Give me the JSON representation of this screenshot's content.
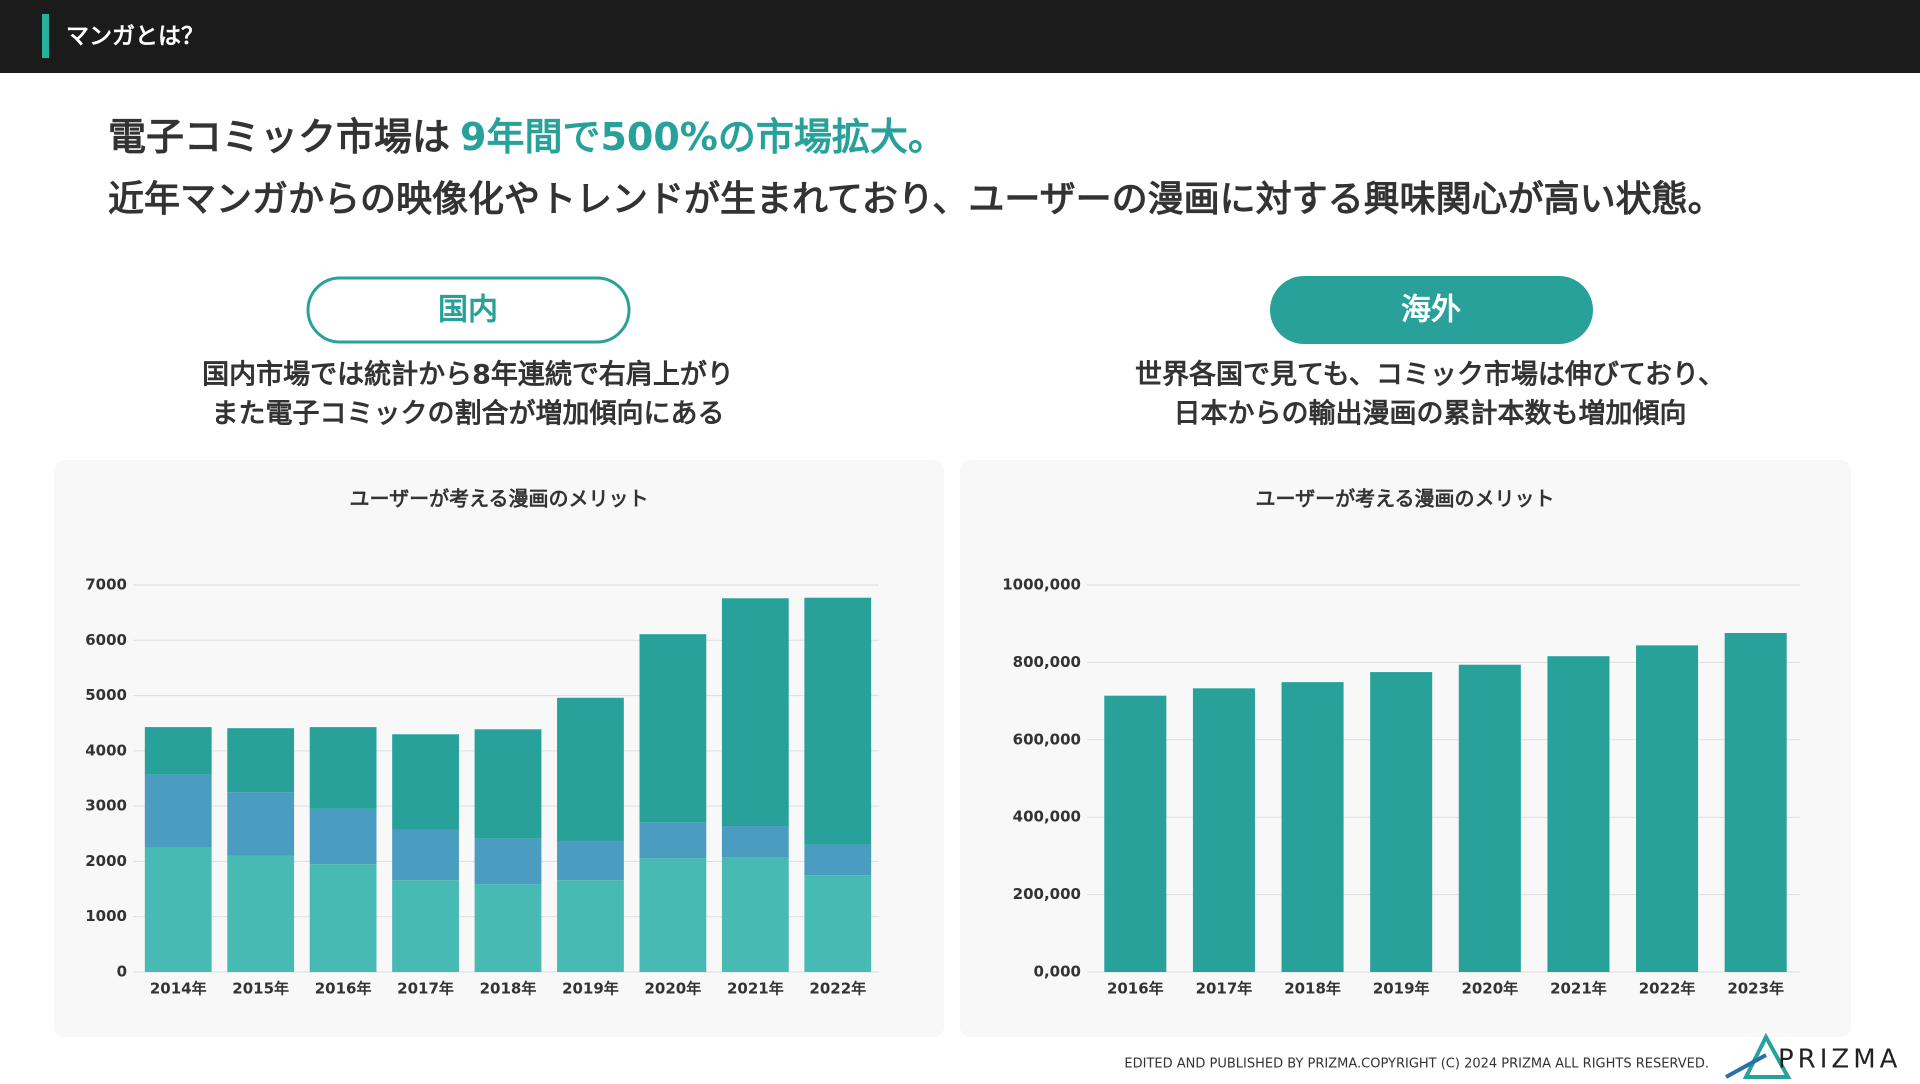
{
  "header": {
    "title": "マンガとは？"
  },
  "headline": {
    "line1_plain": "電子コミック市場は",
    "line1_highlight": "9年間で500%の市場拡大。",
    "line2": "近年マンガからの映像化やトレンドが生まれており、ユーザーの漫画に対する興味関心が高い状態。"
  },
  "sections": [
    {
      "label": "国内",
      "text": [
        "国内市場では統計から8年連続で右肩上がり",
        "また電子コミックの割合が増加傾向にある"
      ]
    },
    {
      "label": "海外",
      "text": [
        "世界各国で見ても、コミック市場は伸びており、",
        "日本からの輸出漫画の累計本数も増加傾向"
      ]
    }
  ],
  "chart_data": [
    {
      "type": "bar",
      "stacked": true,
      "title": "ユーザーが考える漫画のメリット",
      "categories": [
        "2014年",
        "2015年",
        "2016年",
        "2017年",
        "2018年",
        "2019年",
        "2020年",
        "2021年",
        "2022年"
      ],
      "series": [
        {
          "color": "#48bab4",
          "values": [
            2250,
            2100,
            1950,
            1660,
            1590,
            1660,
            2060,
            2080,
            1750
          ]
        },
        {
          "color": "#4a9cc0",
          "values": [
            1320,
            1150,
            1000,
            910,
            820,
            710,
            640,
            560,
            550
          ]
        },
        {
          "color": "#27a19a",
          "values": [
            860,
            1160,
            1480,
            1730,
            1980,
            2590,
            3410,
            4120,
            4470
          ]
        }
      ],
      "ylim": [
        0,
        7000
      ],
      "yticks": [
        0,
        1000,
        2000,
        3000,
        4000,
        5000,
        6000,
        7000
      ],
      "grid": true
    },
    {
      "type": "bar",
      "title": "ユーザーが考える漫画のメリット",
      "categories": [
        "2016年",
        "2017年",
        "2018年",
        "2019年",
        "2020年",
        "2021年",
        "2022年",
        "2023年"
      ],
      "series": [
        {
          "color": "#27a19a",
          "values": [
            714000,
            733000,
            749000,
            775000,
            794000,
            816000,
            844000,
            876000
          ]
        }
      ],
      "ylim": [
        0,
        1000000
      ],
      "yticks": [
        {
          "value": 0,
          "label": "0,000"
        },
        {
          "value": 200000,
          "label": "200,000"
        },
        {
          "value": 400000,
          "label": "400,000"
        },
        {
          "value": 600000,
          "label": "600,000"
        },
        {
          "value": 800000,
          "label": "800,000"
        },
        {
          "value": 1000000,
          "label": "1000,000"
        }
      ],
      "grid": true
    }
  ],
  "footer": {
    "copyright": "EDITED AND PUBLISHED BY PRIZMA.COPYRIGHT (C) 2024 PRIZMA ALL RIGHTS RESERVED.",
    "logo": "PRIZMA"
  }
}
